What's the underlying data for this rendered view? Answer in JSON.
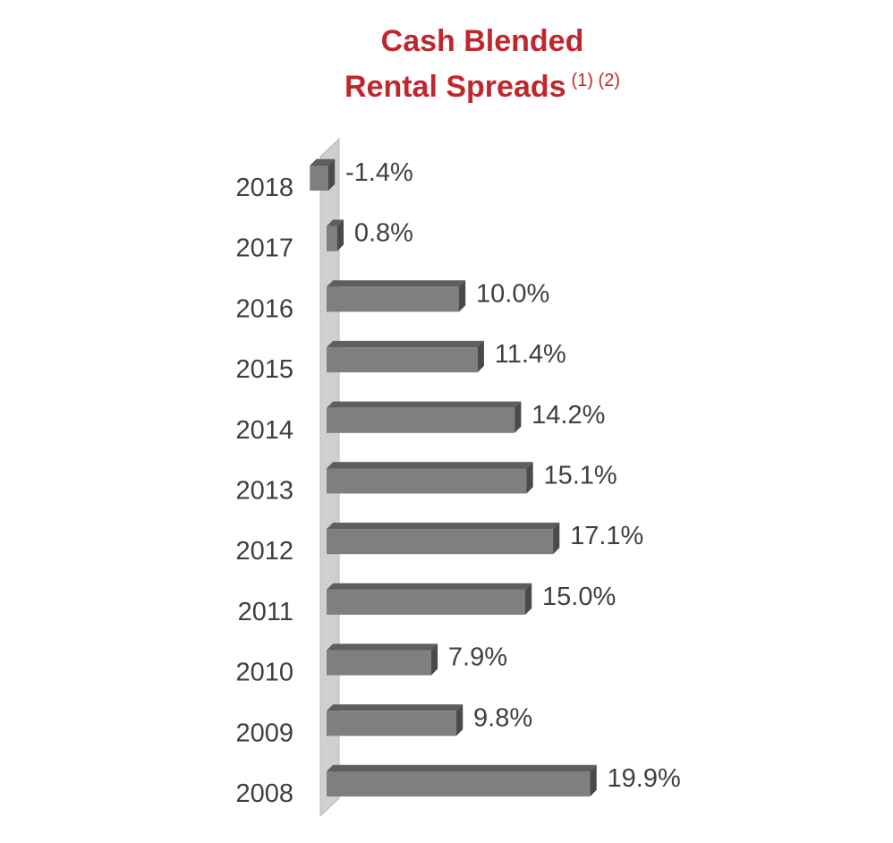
{
  "chart_data": {
    "type": "bar",
    "orientation": "horizontal",
    "title": "Cash Blended",
    "title_line2": "Rental Spreads",
    "title_notes": "(1) (2)",
    "categories": [
      "2018",
      "2017",
      "2016",
      "2015",
      "2014",
      "2013",
      "2012",
      "2011",
      "2010",
      "2009",
      "2008"
    ],
    "values": [
      -1.4,
      0.8,
      10.0,
      11.4,
      14.2,
      15.1,
      17.1,
      15.0,
      7.9,
      9.8,
      19.9
    ],
    "labels": [
      "-1.4%",
      "0.8%",
      "10.0%",
      "11.4%",
      "14.2%",
      "15.1%",
      "17.1%",
      "15.0%",
      "7.9%",
      "9.8%",
      "19.9%"
    ],
    "unit": "%",
    "style": "3d",
    "colors": {
      "title": "#c0272d",
      "bar": "#7f7f7f",
      "bar_top": "#5e5e5e",
      "bar_side": "#4a4a4a",
      "axis_wall": "#d0d0d0",
      "text": "#404040"
    }
  }
}
